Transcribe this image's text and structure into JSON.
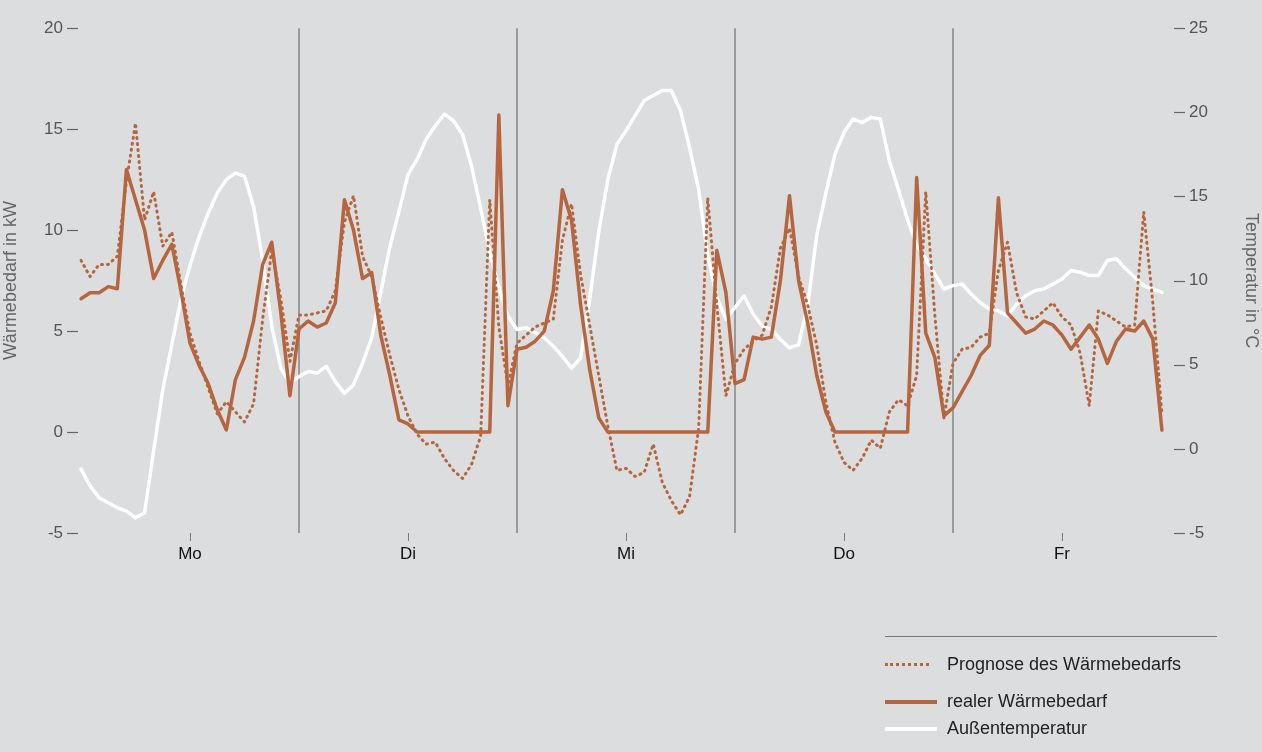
{
  "chart_data": {
    "type": "line",
    "ylabel": "Wärmebedarf in kW",
    "y2label": "Temperatur in °C",
    "categories": [
      null,
      null,
      null,
      null,
      null,
      null,
      null,
      null,
      null,
      null,
      null,
      null,
      "Mo",
      null,
      null,
      null,
      null,
      null,
      null,
      null,
      null,
      null,
      null,
      null,
      null,
      null,
      null,
      null,
      null,
      null,
      null,
      null,
      null,
      null,
      null,
      null,
      "Di",
      null,
      null,
      null,
      null,
      null,
      null,
      null,
      null,
      null,
      null,
      null,
      null,
      null,
      null,
      null,
      null,
      null,
      null,
      null,
      null,
      null,
      null,
      null,
      "Mi",
      null,
      null,
      null,
      null,
      null,
      null,
      null,
      null,
      null,
      null,
      null,
      null,
      null,
      null,
      null,
      null,
      null,
      null,
      null,
      null,
      null,
      null,
      null,
      "Do",
      null,
      null,
      null,
      null,
      null,
      null,
      null,
      null,
      null,
      null,
      null,
      null,
      null,
      null,
      null,
      null,
      null,
      null,
      null,
      null,
      null,
      null,
      null,
      "Fr",
      null,
      null,
      null,
      null,
      null,
      null,
      null,
      null,
      null,
      null,
      null,
      null
    ],
    "ylim": [
      -5,
      20
    ],
    "yticks": [
      -5,
      0,
      5,
      10,
      15,
      20
    ],
    "y2lim": [
      -5,
      25
    ],
    "y2ticks": [
      -5,
      0,
      5,
      10,
      15,
      20,
      25
    ],
    "grid": false,
    "legend": "bottom right",
    "marker": "none",
    "series": [
      {
        "name": "Prognose des Wärmebedarfs",
        "color": "#b5663e",
        "line_style": "dotted",
        "axis": "y",
        "values": [
          8.5,
          7.7,
          8.3,
          8.3,
          8.7,
          12.4,
          15.3,
          10.5,
          11.9,
          9.2,
          9.9,
          7.3,
          4.9,
          3.5,
          2.2,
          0.9,
          1.5,
          1.0,
          0.5,
          1.4,
          5.6,
          9.0,
          6.6,
          3.5,
          5.8,
          5.8,
          5.9,
          6.0,
          7.0,
          10.4,
          11.7,
          8.7,
          7.7,
          5.7,
          3.8,
          2.1,
          0.8,
          -0.1,
          -0.6,
          -0.5,
          -1.3,
          -1.9,
          -2.3,
          -1.6,
          -0.2,
          11.5,
          5.2,
          2.3,
          4.4,
          4.8,
          5.2,
          5.4,
          5.6,
          9.5,
          11.3,
          7.8,
          5.3,
          2.8,
          0.3,
          -1.9,
          -1.8,
          -2.2,
          -2.0,
          -0.6,
          -2.5,
          -3.4,
          -4.1,
          -3.2,
          0.2,
          11.6,
          6.3,
          1.8,
          3.4,
          4.1,
          4.5,
          4.8,
          6.2,
          9.1,
          10.1,
          7.7,
          6.3,
          4.3,
          1.5,
          -0.5,
          -1.5,
          -1.9,
          -1.3,
          -0.4,
          -0.8,
          1.0,
          1.6,
          1.3,
          2.8,
          11.9,
          5.8,
          0.7,
          3.4,
          4.1,
          4.2,
          4.7,
          4.9,
          8.0,
          9.4,
          6.9,
          5.7,
          5.6,
          6.0,
          6.4,
          5.7,
          5.3,
          3.9,
          1.3,
          6.0,
          5.8,
          5.5,
          5.2,
          5.3,
          10.9,
          6.4,
          0.9,
          null
        ]
      },
      {
        "name": "realer Wärmebedarf",
        "color": "#b5663e",
        "line_style": "solid",
        "axis": "y",
        "values": [
          6.6,
          6.9,
          6.9,
          7.2,
          7.1,
          13.0,
          11.5,
          10.0,
          7.6,
          8.5,
          9.3,
          7.0,
          4.4,
          3.3,
          2.4,
          1.1,
          0.1,
          2.6,
          3.7,
          5.5,
          8.3,
          9.4,
          5.9,
          1.8,
          5.1,
          5.5,
          5.2,
          5.4,
          6.4,
          11.5,
          10.0,
          7.6,
          7.9,
          4.8,
          2.8,
          0.6,
          0.4,
          0,
          0,
          0,
          0,
          0,
          0,
          0,
          0,
          0,
          15.7,
          1.3,
          4.1,
          4.2,
          4.5,
          5.0,
          7.0,
          12.0,
          10.5,
          6.3,
          3.1,
          0.7,
          0,
          0,
          0,
          0,
          0,
          0,
          0,
          0,
          0,
          0,
          0,
          0,
          9.0,
          6.9,
          2.4,
          2.6,
          4.7,
          4.6,
          4.7,
          7.5,
          11.7,
          7.5,
          5.4,
          2.8,
          1.0,
          0,
          0,
          0,
          0,
          0,
          0,
          0,
          0,
          0,
          12.6,
          4.9,
          3.7,
          0.8,
          1.2,
          2.0,
          2.8,
          3.8,
          4.3,
          11.6,
          5.9,
          5.4,
          4.9,
          5.1,
          5.5,
          5.3,
          4.8,
          4.1,
          4.7,
          5.3,
          4.6,
          3.4,
          4.5,
          5.1,
          5.0,
          5.5,
          4.6,
          0.1,
          null
        ]
      },
      {
        "name": "Außentemperatur",
        "color": "#ffffff",
        "line_style": "solid",
        "axis": "y2",
        "values": [
          -1.2,
          -2.2,
          -2.9,
          -3.2,
          -3.5,
          -3.7,
          -4.1,
          -3.8,
          -0.1,
          3.5,
          6.2,
          8.9,
          10.9,
          12.6,
          14.0,
          15.2,
          16.0,
          16.4,
          16.2,
          14.4,
          11.2,
          7.3,
          4.8,
          3.9,
          4.3,
          4.6,
          4.5,
          4.9,
          4.0,
          3.3,
          3.8,
          5.1,
          6.6,
          9.3,
          12.0,
          14.1,
          16.3,
          17.2,
          18.4,
          19.2,
          19.9,
          19.5,
          18.7,
          16.8,
          14.3,
          11.7,
          9.6,
          7.9,
          7.1,
          7.2,
          6.9,
          6.6,
          6.1,
          5.5,
          4.8,
          5.4,
          8.9,
          12.9,
          16.0,
          18.1,
          18.9,
          19.8,
          20.7,
          21.0,
          21.3,
          21.3,
          20.1,
          17.9,
          15.4,
          11.5,
          9.0,
          7.7,
          8.4,
          9.1,
          8.0,
          7.3,
          7.1,
          6.5,
          6.0,
          6.2,
          8.5,
          12.7,
          15.2,
          17.5,
          18.8,
          19.6,
          19.4,
          19.7,
          19.6,
          17.1,
          15.4,
          13.6,
          12.1,
          11.3,
          10.4,
          9.5,
          9.7,
          9.8,
          9.2,
          8.7,
          8.3,
          8.2,
          7.9,
          8.6,
          9.1,
          9.4,
          9.5,
          9.8,
          10.1,
          10.6,
          10.5,
          10.3,
          10.3,
          11.2,
          11.3,
          10.7,
          10.2,
          9.7,
          9.5,
          9.3,
          null
        ]
      }
    ]
  }
}
